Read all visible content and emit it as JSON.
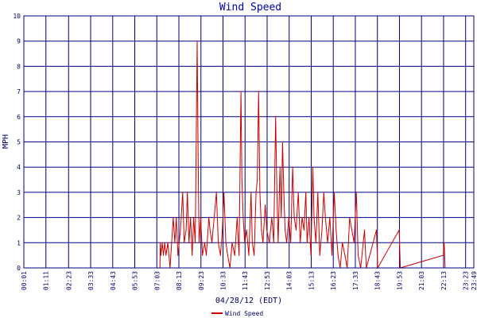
{
  "chart_data": {
    "type": "line",
    "title": "Wind Speed",
    "xlabel": "04/28/12 (EDT)",
    "ylabel": "MPH",
    "ylim": [
      0,
      10
    ],
    "y_ticks": [
      "0",
      "1",
      "2",
      "3",
      "4",
      "5",
      "6",
      "7",
      "8",
      "9",
      "10"
    ],
    "x_range": [
      "00:01",
      "23:49"
    ],
    "x_ticks": [
      "00:01",
      "01:11",
      "02:23",
      "03:33",
      "04:43",
      "05:53",
      "07:03",
      "08:13",
      "09:23",
      "10:33",
      "11:43",
      "12:53",
      "14:03",
      "15:13",
      "16:23",
      "17:33",
      "18:43",
      "19:53",
      "21:03",
      "22:13",
      "23:23",
      "23:49"
    ],
    "grid": true,
    "legend_position": "bottom-center",
    "colors": {
      "series": "#cc0000",
      "grid": "#000080",
      "text": "#000066",
      "title": "#0000aa"
    },
    "series": [
      {
        "name": "Wind Speed",
        "points": [
          [
            "00:01",
            0
          ],
          [
            "07:13",
            0
          ],
          [
            "07:14",
            1
          ],
          [
            "07:16",
            0.5
          ],
          [
            "07:20",
            1
          ],
          [
            "07:24",
            0.5
          ],
          [
            "07:28",
            1
          ],
          [
            "07:32",
            0.5
          ],
          [
            "07:38",
            1
          ],
          [
            "07:45",
            0
          ],
          [
            "07:55",
            2
          ],
          [
            "08:00",
            1
          ],
          [
            "08:05",
            2
          ],
          [
            "08:10",
            0.5
          ],
          [
            "08:18",
            1.5
          ],
          [
            "08:25",
            3
          ],
          [
            "08:30",
            1
          ],
          [
            "08:36",
            1.5
          ],
          [
            "08:40",
            3
          ],
          [
            "08:45",
            1
          ],
          [
            "08:50",
            2
          ],
          [
            "08:55",
            0.5
          ],
          [
            "09:00",
            2
          ],
          [
            "09:05",
            1
          ],
          [
            "09:11",
            9
          ],
          [
            "09:14",
            4.5
          ],
          [
            "09:17",
            1
          ],
          [
            "09:22",
            2
          ],
          [
            "09:28",
            0.5
          ],
          [
            "09:35",
            1
          ],
          [
            "09:40",
            0.5
          ],
          [
            "09:48",
            2
          ],
          [
            "09:52",
            1.5
          ],
          [
            "09:58",
            1
          ],
          [
            "10:05",
            2
          ],
          [
            "10:12",
            3
          ],
          [
            "10:18",
            1
          ],
          [
            "10:25",
            0.5
          ],
          [
            "10:31",
            1.5
          ],
          [
            "10:36",
            3
          ],
          [
            "10:42",
            1
          ],
          [
            "10:48",
            0.5
          ],
          [
            "10:55",
            0
          ],
          [
            "11:02",
            1
          ],
          [
            "11:10",
            0.5
          ],
          [
            "11:18",
            2
          ],
          [
            "11:24",
            0.5
          ],
          [
            "11:30",
            7
          ],
          [
            "11:33",
            3.5
          ],
          [
            "11:37",
            2
          ],
          [
            "11:42",
            1
          ],
          [
            "11:48",
            1.5
          ],
          [
            "11:55",
            0.5
          ],
          [
            "12:02",
            3
          ],
          [
            "12:06",
            1
          ],
          [
            "12:12",
            0.5
          ],
          [
            "12:18",
            3
          ],
          [
            "12:22",
            3.5
          ],
          [
            "12:26",
            7
          ],
          [
            "12:30",
            3
          ],
          [
            "12:35",
            1.5
          ],
          [
            "12:40",
            1
          ],
          [
            "12:47",
            2.5
          ],
          [
            "12:52",
            1.5
          ],
          [
            "13:00",
            1
          ],
          [
            "13:08",
            2
          ],
          [
            "13:14",
            1
          ],
          [
            "13:20",
            6
          ],
          [
            "13:24",
            3
          ],
          [
            "13:28",
            1
          ],
          [
            "13:34",
            4
          ],
          [
            "13:38",
            2
          ],
          [
            "13:42",
            5
          ],
          [
            "13:46",
            3
          ],
          [
            "13:50",
            1.5
          ],
          [
            "13:55",
            1
          ],
          [
            "14:02",
            2
          ],
          [
            "14:08",
            1
          ],
          [
            "14:14",
            4
          ],
          [
            "14:19",
            2
          ],
          [
            "14:25",
            1.5
          ],
          [
            "14:32",
            3
          ],
          [
            "14:38",
            1
          ],
          [
            "14:44",
            2
          ],
          [
            "14:50",
            1.5
          ],
          [
            "14:56",
            3
          ],
          [
            "15:00",
            1
          ],
          [
            "15:06",
            2
          ],
          [
            "15:12",
            0.5
          ],
          [
            "15:18",
            4
          ],
          [
            "15:22",
            2
          ],
          [
            "15:28",
            1
          ],
          [
            "15:34",
            3
          ],
          [
            "15:40",
            0.5
          ],
          [
            "15:47",
            1.5
          ],
          [
            "15:53",
            3
          ],
          [
            "15:58",
            2
          ],
          [
            "16:05",
            1
          ],
          [
            "16:12",
            2
          ],
          [
            "16:19",
            0.5
          ],
          [
            "16:26",
            3
          ],
          [
            "16:32",
            1.5
          ],
          [
            "16:38",
            0.5
          ],
          [
            "16:45",
            0
          ],
          [
            "16:52",
            1
          ],
          [
            "17:00",
            0.5
          ],
          [
            "17:07",
            0
          ],
          [
            "17:15",
            2
          ],
          [
            "17:22",
            1.5
          ],
          [
            "17:29",
            1
          ],
          [
            "17:36",
            3
          ],
          [
            "17:42",
            0.5
          ],
          [
            "17:50",
            0
          ],
          [
            "18:02",
            1.5
          ],
          [
            "18:08",
            0
          ],
          [
            "18:40",
            1.5
          ],
          [
            "18:44",
            0
          ],
          [
            "19:52",
            1.5
          ],
          [
            "19:56",
            0
          ],
          [
            "22:12",
            0.5
          ],
          [
            "22:15",
            1
          ],
          [
            "22:18",
            0
          ],
          [
            "23:49",
            0
          ]
        ]
      }
    ]
  }
}
